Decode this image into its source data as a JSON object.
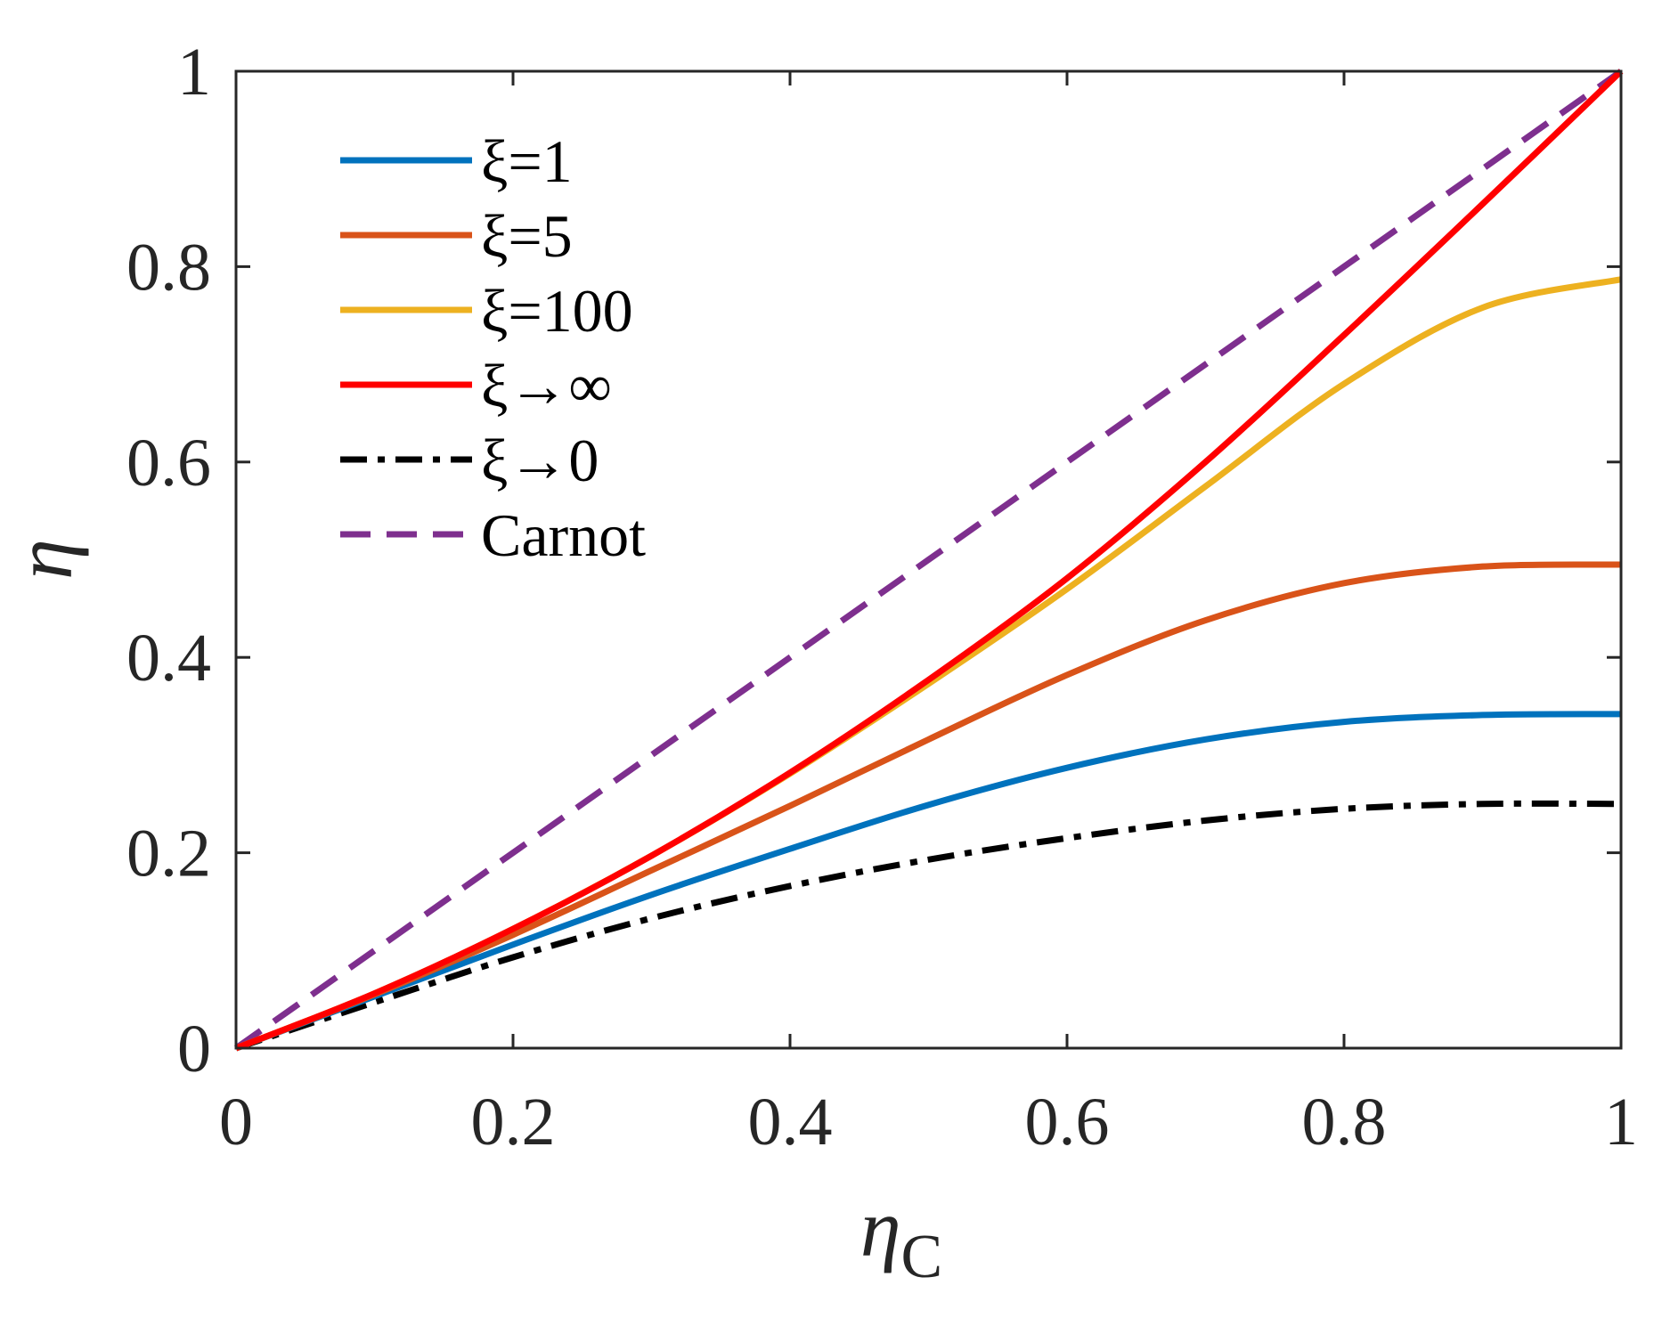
{
  "chart_data": {
    "type": "line",
    "title": "",
    "xlabel": "η",
    "xlabel_sub": "C",
    "ylabel": "η",
    "xlim": [
      0,
      1
    ],
    "ylim": [
      0,
      1
    ],
    "xticks": [
      0,
      0.2,
      0.4,
      0.6,
      0.8,
      1
    ],
    "yticks": [
      0,
      0.2,
      0.4,
      0.6,
      0.8,
      1
    ],
    "xtick_labels": [
      "0",
      "0.2",
      "0.4",
      "0.6",
      "0.8",
      "1"
    ],
    "ytick_labels": [
      "0",
      "0.2",
      "0.4",
      "0.6",
      "0.8",
      "1"
    ],
    "grid": false,
    "legend_position": "top-left",
    "x": [
      0,
      0.1,
      0.2,
      0.3,
      0.4,
      0.5,
      0.6,
      0.7,
      0.8,
      0.9,
      1.0
    ],
    "series": [
      {
        "name": "ξ=1",
        "color": "#0072BD",
        "style": "solid",
        "values": [
          0,
          0.053,
          0.106,
          0.157,
          0.204,
          0.249,
          0.287,
          0.316,
          0.334,
          0.341,
          0.342
        ]
      },
      {
        "name": "ξ=5",
        "color": "#D95319",
        "style": "solid",
        "values": [
          0,
          0.055,
          0.116,
          0.182,
          0.248,
          0.316,
          0.382,
          0.438,
          0.476,
          0.493,
          0.495
        ]
      },
      {
        "name": "ξ=100",
        "color": "#EDB120",
        "style": "solid",
        "values": [
          0,
          0.056,
          0.122,
          0.197,
          0.281,
          0.373,
          0.47,
          0.575,
          0.68,
          0.758,
          0.787
        ]
      },
      {
        "name": "ξ→∞",
        "color": "#FF0000",
        "style": "solid",
        "values": [
          0,
          0.056,
          0.122,
          0.197,
          0.282,
          0.377,
          0.481,
          0.6,
          0.73,
          0.864,
          1.0
        ]
      },
      {
        "name": "ξ→0",
        "color": "#000000",
        "style": "dashdot",
        "values": [
          0,
          0.047,
          0.093,
          0.133,
          0.166,
          0.193,
          0.215,
          0.233,
          0.245,
          0.25,
          0.25
        ]
      },
      {
        "name": "Carnot",
        "color": "#7E2F8E",
        "style": "dashed",
        "values": [
          0,
          0.1,
          0.2,
          0.3,
          0.4,
          0.5,
          0.6,
          0.7,
          0.8,
          0.9,
          1.0
        ]
      }
    ]
  }
}
